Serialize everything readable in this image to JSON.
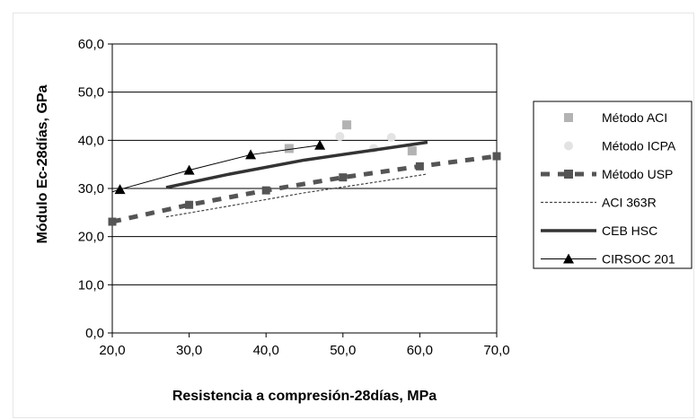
{
  "chart_data": {
    "type": "scatter",
    "xlabel": "Resistencia a compresión-28días, MPa",
    "ylabel": "Módulo Ec-28días, GPa",
    "xlim": [
      20,
      70
    ],
    "ylim": [
      0,
      60
    ],
    "x_ticks": [
      "20,0",
      "30,0",
      "40,0",
      "50,0",
      "60,0",
      "70,0"
    ],
    "y_ticks": [
      "0,0",
      "10,0",
      "20,0",
      "30,0",
      "40,0",
      "50,0",
      "60,0"
    ],
    "grid": "horizontal",
    "legend_position": "right",
    "series": [
      {
        "name": "Método ACI",
        "type": "scatter",
        "marker": "square",
        "color": "#b3b3b3",
        "points": [
          [
            43,
            38.3
          ],
          [
            50.5,
            43.2
          ],
          [
            59,
            37.8
          ]
        ]
      },
      {
        "name": "Método ICPA",
        "type": "scatter",
        "marker": "circle",
        "color": "#e3e3e3",
        "points": [
          [
            49.6,
            40.8
          ],
          [
            54,
            38.3
          ],
          [
            56.3,
            40.6
          ]
        ]
      },
      {
        "name": "Método USP",
        "type": "line",
        "marker": "square",
        "style": "dashed-thick",
        "color": "#555555",
        "points": [
          [
            20,
            23.1
          ],
          [
            30,
            26.6
          ],
          [
            40,
            29.6
          ],
          [
            50,
            32.3
          ],
          [
            60,
            34.6
          ],
          [
            70,
            36.7
          ]
        ]
      },
      {
        "name": "ACI 363R",
        "type": "line",
        "style": "dotted",
        "color": "#444444",
        "points": [
          [
            27,
            24.1
          ],
          [
            35,
            26.3
          ],
          [
            45,
            29.1
          ],
          [
            55,
            31.5
          ],
          [
            61,
            33.0
          ]
        ]
      },
      {
        "name": "CEB HSC",
        "type": "line",
        "style": "thick",
        "color": "#333333",
        "points": [
          [
            27,
            30.2
          ],
          [
            35,
            32.9
          ],
          [
            45,
            35.9
          ],
          [
            55,
            38.2
          ],
          [
            61,
            39.6
          ]
        ]
      },
      {
        "name": "CIRSOC 201",
        "type": "line",
        "marker": "triangle",
        "style": "thin",
        "color": "#000000",
        "points": [
          [
            19,
            28.8
          ],
          [
            21,
            29.8
          ],
          [
            30,
            33.8
          ],
          [
            38,
            37.0
          ],
          [
            47,
            39.0
          ]
        ]
      }
    ]
  }
}
